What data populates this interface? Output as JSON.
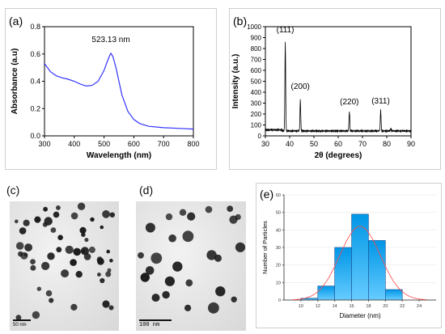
{
  "chart_data": [
    {
      "panel": "(a)",
      "type": "line",
      "xlabel": "Wavelength (nm)",
      "ylabel": "Absorbance (a.u)",
      "xlim": [
        300,
        800
      ],
      "ylim": [
        0.0,
        0.8
      ],
      "xticks": [
        "300",
        "400",
        "500",
        "600",
        "700",
        "800"
      ],
      "yticks": [
        "0.0",
        "0.2",
        "0.4",
        "0.6",
        "0.8"
      ],
      "annotations": [
        {
          "text": "523.13 nm",
          "x": 523,
          "y": 0.64
        }
      ],
      "series": [
        {
          "color": "#3333ff",
          "x": [
            300,
            320,
            340,
            360,
            380,
            400,
            420,
            440,
            460,
            480,
            500,
            510,
            520,
            523,
            530,
            540,
            550,
            560,
            580,
            600,
            620,
            650,
            700,
            750,
            800
          ],
          "y": [
            0.53,
            0.47,
            0.44,
            0.425,
            0.415,
            0.4,
            0.38,
            0.365,
            0.37,
            0.4,
            0.48,
            0.54,
            0.595,
            0.605,
            0.58,
            0.5,
            0.4,
            0.3,
            0.18,
            0.12,
            0.09,
            0.07,
            0.06,
            0.055,
            0.05
          ]
        }
      ]
    },
    {
      "panel": "(b)",
      "type": "line",
      "xlabel": "2θ (degrees)",
      "ylabel": "Intensity (a.u.)",
      "xlim": [
        30,
        90
      ],
      "ylim": [
        0,
        1000
      ],
      "xticks": [
        "30",
        "40",
        "50",
        "60",
        "70",
        "80",
        "90"
      ],
      "yticks": [
        "0",
        "100",
        "200",
        "300",
        "400",
        "500",
        "600",
        "700",
        "800",
        "900",
        "1000"
      ],
      "annotations": [
        {
          "text": "(111)",
          "x": 38.2,
          "y": 950
        },
        {
          "text": "(200)",
          "x": 44.4,
          "y": 430
        },
        {
          "text": "(220)",
          "x": 64.6,
          "y": 290
        },
        {
          "text": "(311)",
          "x": 77.5,
          "y": 295
        }
      ],
      "series": [
        {
          "color": "#000000",
          "peaks": [
            [
              38.2,
              860
            ],
            [
              44.4,
              330
            ],
            [
              64.6,
              225
            ],
            [
              77.5,
              235
            ],
            [
              81.7,
              65
            ]
          ],
          "baseline": 45
        }
      ]
    },
    {
      "panel": "(e)",
      "type": "bar",
      "xlabel": "Diameter (nm)",
      "ylabel": "Number of Particles",
      "xlim": [
        8,
        26
      ],
      "ylim": [
        0,
        60
      ],
      "xticks": [
        "10",
        "12",
        "14",
        "16",
        "18",
        "20",
        "22",
        "24"
      ],
      "yticks": [
        "0",
        "10",
        "20",
        "30",
        "40",
        "50",
        "60"
      ],
      "bins": [
        [
          10,
          12,
          1
        ],
        [
          12,
          14,
          8
        ],
        [
          14,
          16,
          30
        ],
        [
          16,
          18,
          49
        ],
        [
          18,
          20,
          34
        ],
        [
          20,
          22,
          6
        ],
        [
          22,
          24,
          0
        ]
      ],
      "fit_color": "#ff4444",
      "fit": {
        "mean": 17.0,
        "sd": 2.4,
        "peak": 42
      }
    }
  ],
  "panels": {
    "a": "(a)",
    "b": "(b)",
    "c": "(c)",
    "d": "(d)",
    "e": "(e)"
  },
  "scalebars": {
    "c": "50 nm",
    "d": "100 nm"
  },
  "colors": {
    "uv_line": "#3333ff",
    "hist_bar_light": "#66ccff",
    "hist_bar_dark": "#0096e6",
    "fit_line": "#ff4444"
  }
}
